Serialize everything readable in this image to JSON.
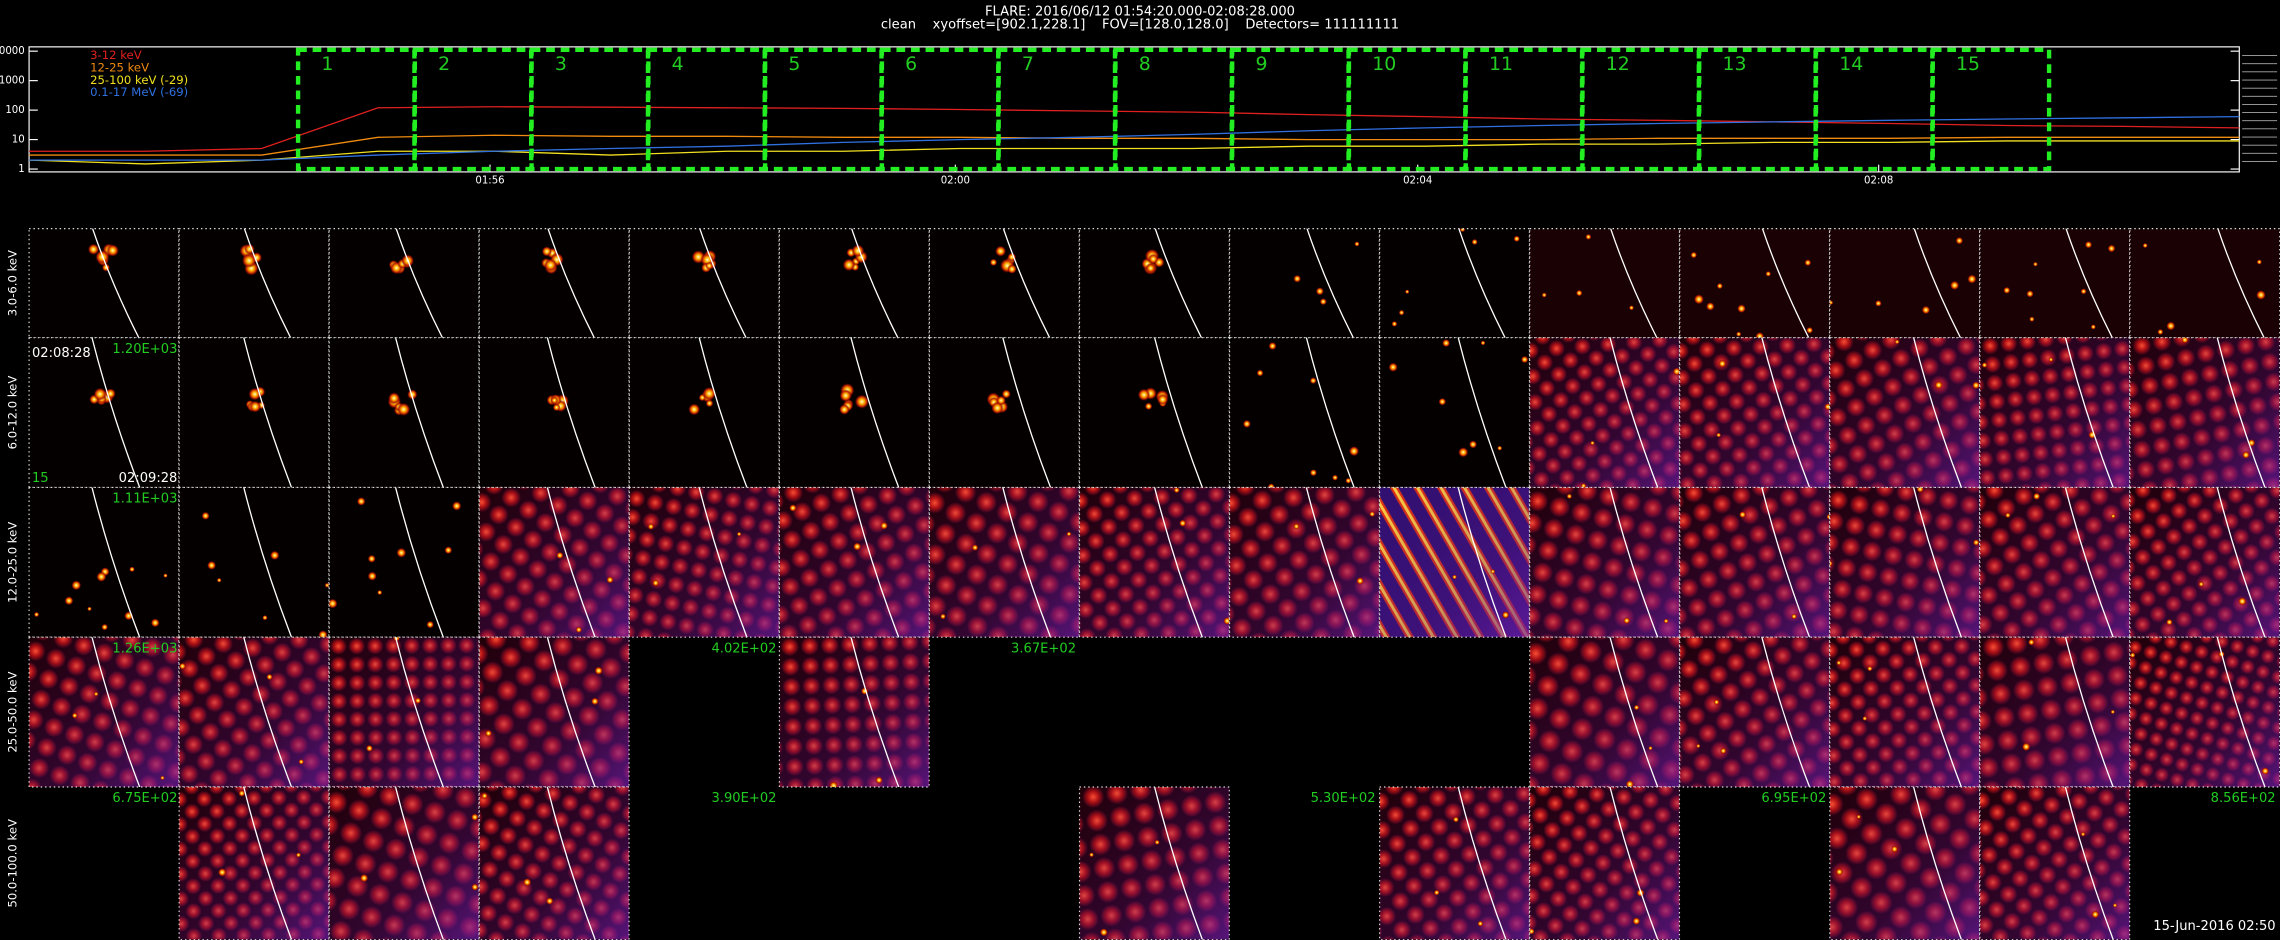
{
  "header": {
    "title": "FLARE: 2016/06/12 01:54:20.000-02:08:28.000",
    "subtitle": "clean    xyoffset=[902.1,228.1]    FOV=[128.0,128.0]    Detectors= 111111111"
  },
  "lightcurve": {
    "yscale": "log",
    "ylim": [
      0.8,
      14000
    ],
    "yticks": [
      1,
      10,
      100,
      1000,
      10000
    ],
    "x_labels": [
      "01:56",
      "02:00",
      "02:04",
      "02:08"
    ],
    "series": [
      {
        "name": "3-12 keV",
        "color": "#e02020",
        "values": [
          4,
          4,
          5,
          120,
          130,
          125,
          120,
          115,
          105,
          95,
          85,
          70,
          60,
          50,
          45,
          40,
          35,
          30,
          28,
          25
        ]
      },
      {
        "name": "12-25 keV",
        "color": "#f08a10",
        "values": [
          3,
          3,
          3,
          12,
          14,
          13,
          13,
          12,
          12,
          11,
          11,
          10,
          10,
          10,
          11,
          11,
          11,
          12,
          12,
          12
        ]
      },
      {
        "name": "25-100 keV (-29)",
        "color": "#f0e020",
        "values": [
          2,
          1.5,
          2,
          4,
          4,
          3,
          4,
          4,
          5,
          5,
          5,
          6,
          6,
          7,
          7,
          8,
          8,
          9,
          9,
          9
        ]
      },
      {
        "name": "0.1-17 MeV (-69)",
        "color": "#3070e0",
        "values": [
          2,
          2,
          2,
          3,
          4,
          5,
          6,
          8,
          10,
          12,
          15,
          20,
          25,
          30,
          35,
          40,
          45,
          50,
          55,
          60
        ]
      }
    ],
    "intervals": [
      "1",
      "2",
      "3",
      "4",
      "5",
      "6",
      "7",
      "8",
      "9",
      "10",
      "11",
      "12",
      "13",
      "14",
      "15"
    ]
  },
  "rows": [
    "3.0-6.0 keV",
    "6.0-12.0 keV",
    "12.0-25.0 keV",
    "25.0-50.0 keV",
    "50.0-100.0 keV"
  ],
  "panel_labels": [
    "1.20E+03",
    "02:08:28",
    "15",
    "02:09:28",
    "1.11E+03",
    "1.26E+03",
    "4.02E+02",
    "3.67E+02",
    "6.75E+02",
    "3.90E+02",
    "5.30E+02",
    "6.95E+02",
    "8.56E+02"
  ],
  "timestamp": "15-Jun-2016 02:50"
}
